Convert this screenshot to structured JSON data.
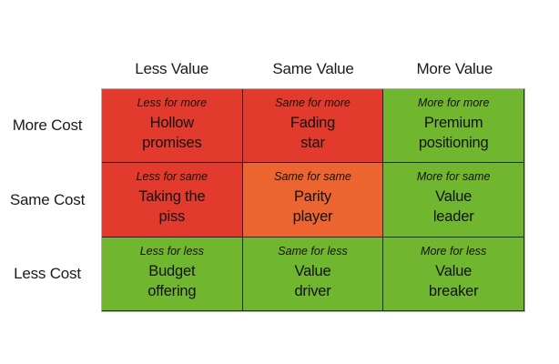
{
  "colors": {
    "red": "#e23b2e",
    "orange": "#ec6531",
    "green": "#70b62f",
    "grid_outer_border": "#b2b2b2",
    "text": "#161616"
  },
  "column_headers": [
    "Less Value",
    "Same Value",
    "More Value"
  ],
  "row_headers": [
    "More Cost",
    "Same Cost",
    "Less Cost"
  ],
  "matrix": {
    "cells": [
      {
        "caption": "Less for more",
        "label": "Hollow\npromises",
        "color": "red"
      },
      {
        "caption": "Same for more",
        "label": "Fading\nstar",
        "color": "red"
      },
      {
        "caption": "More for more",
        "label": "Premium\npositioning",
        "color": "green"
      },
      {
        "caption": "Less for same",
        "label": "Taking the\npiss",
        "color": "red"
      },
      {
        "caption": "Same for same",
        "label": "Parity\nplayer",
        "color": "orange"
      },
      {
        "caption": "More for same",
        "label": "Value\nleader",
        "color": "green"
      },
      {
        "caption": "Less for less",
        "label": "Budget\noffering",
        "color": "green"
      },
      {
        "caption": "Same for less",
        "label": "Value\ndriver",
        "color": "green"
      },
      {
        "caption": "More for less",
        "label": "Value\nbreaker",
        "color": "green"
      }
    ]
  }
}
